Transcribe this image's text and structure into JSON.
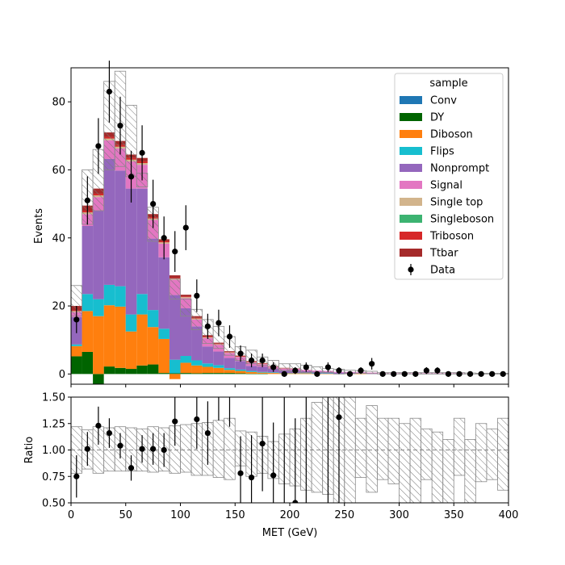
{
  "chart_data": [
    {
      "type": "bar",
      "stacked": true,
      "ylabel": "Events",
      "xlim": [
        0,
        400
      ],
      "ylim": [
        -3,
        90
      ],
      "yticks": [
        0,
        20,
        40,
        60,
        80
      ],
      "xticks": [
        0,
        50,
        100,
        150,
        200,
        250,
        300,
        350,
        400
      ],
      "bin_edges": [
        0,
        10,
        20,
        30,
        40,
        50,
        60,
        70,
        80,
        90,
        100,
        110,
        120,
        130,
        140,
        150,
        160,
        170,
        180,
        190,
        200,
        210,
        220,
        230,
        240,
        250,
        260,
        270,
        280,
        290,
        300,
        310,
        320,
        330,
        340,
        350,
        360,
        370,
        380,
        390,
        400
      ],
      "legend_title": "sample",
      "legend_position": "top-right",
      "series": [
        {
          "name": "Conv",
          "color": "#1f77b4",
          "values": [
            0,
            0,
            0,
            0,
            0,
            0,
            0,
            0,
            0,
            0,
            0,
            0,
            0,
            0,
            0,
            0,
            0,
            0,
            0,
            0,
            0,
            0,
            0,
            0,
            0,
            0,
            0,
            0,
            0,
            0,
            0,
            0,
            0,
            0,
            0,
            0,
            0,
            0,
            0,
            0
          ]
        },
        {
          "name": "DY",
          "color": "#006400",
          "values": [
            5.2,
            6.5,
            -3,
            2.2,
            1.8,
            1.5,
            2.5,
            2.8,
            0.3,
            0.2,
            0.3,
            0.2,
            0.3,
            0.3,
            0.3,
            0.2,
            0.1,
            0.1,
            0,
            0,
            0,
            0,
            0,
            0,
            0,
            0,
            0,
            0,
            0,
            0,
            0,
            0,
            0,
            0,
            0,
            0,
            0,
            0,
            0,
            0
          ]
        },
        {
          "name": "Diboson",
          "color": "#ff7f0e",
          "values": [
            3,
            12,
            17,
            18,
            18,
            11,
            15,
            11,
            10,
            -1.5,
            3,
            2.3,
            1.8,
            1.5,
            0.9,
            0.7,
            0.5,
            0.3,
            0.3,
            0.2,
            0.2,
            0.2,
            0.1,
            0.1,
            0.1,
            0.1,
            0.1,
            0,
            0,
            0,
            0,
            0,
            0,
            0,
            0,
            0,
            0,
            0,
            0,
            0
          ]
        },
        {
          "name": "Flips",
          "color": "#17becf",
          "values": [
            0.5,
            5,
            5,
            6,
            6,
            5,
            6,
            5,
            3,
            4,
            2,
            1.5,
            1,
            0.8,
            0.5,
            0.4,
            0.3,
            0.2,
            0.2,
            0.1,
            0.1,
            0.1,
            0.1,
            0.1,
            0,
            0,
            0,
            0,
            0,
            0,
            0,
            0,
            0,
            0,
            0,
            0,
            0,
            0,
            0,
            0,
            0
          ]
        },
        {
          "name": "Nonprompt",
          "color": "#9467bd",
          "values": [
            8,
            20,
            26,
            37,
            34,
            37,
            31,
            21,
            21,
            19,
            14,
            10,
            5,
            4,
            3,
            2.5,
            1.5,
            1.5,
            1,
            0.8,
            0.8,
            0.5,
            0.5,
            0.4,
            0.3,
            0.3,
            0.2,
            0.2,
            0.1,
            0.1,
            0.1,
            0.1,
            0.1,
            0.1,
            0.1,
            0.1,
            0,
            0,
            0,
            0
          ]
        },
        {
          "name": "Signal",
          "color": "#e377c2",
          "values": [
            1.5,
            3.5,
            4,
            5.5,
            6.5,
            8,
            7,
            5.5,
            4,
            4.5,
            3,
            2,
            2.5,
            2,
            1.5,
            1.2,
            1,
            0.8,
            0.6,
            0.5,
            0.4,
            0.4,
            0.3,
            0.3,
            0.2,
            0.2,
            0.2,
            0.2,
            0.1,
            0.1,
            0.1,
            0.1,
            0.1,
            0.1,
            0.1,
            0.1,
            0,
            0,
            0,
            0
          ]
        },
        {
          "name": "Single top",
          "color": "#d2b48c",
          "values": [
            0.3,
            0.5,
            0.5,
            0.5,
            0.5,
            0.5,
            0.5,
            0.4,
            0.4,
            0.3,
            0.3,
            0.3,
            0.2,
            0.2,
            0.2,
            0.1,
            0.1,
            0.1,
            0.1,
            0.1,
            0,
            0,
            0,
            0,
            0,
            0,
            0,
            0,
            0,
            0,
            0,
            0,
            0,
            0,
            0,
            0,
            0,
            0,
            0,
            0
          ]
        },
        {
          "name": "Singleboson",
          "color": "#3cb371",
          "values": [
            0,
            0,
            0,
            0,
            0,
            0,
            0,
            0,
            0,
            0,
            0,
            0,
            0,
            0,
            0,
            0,
            0,
            0,
            0,
            0,
            0,
            0,
            0,
            0,
            0,
            0,
            0,
            0,
            0,
            0,
            0,
            0,
            0,
            0,
            0,
            0,
            0,
            0,
            0,
            0
          ]
        },
        {
          "name": "Triboson",
          "color": "#d62728",
          "values": [
            0.2,
            0.5,
            0.5,
            0.5,
            0.5,
            0.5,
            0.5,
            0.4,
            0.3,
            0.3,
            0.2,
            0.2,
            0.2,
            0.1,
            0.1,
            0.1,
            0.1,
            0.1,
            0,
            0,
            0,
            0,
            0,
            0,
            0,
            0,
            0,
            0,
            0,
            0,
            0,
            0,
            0,
            0,
            0,
            0,
            0,
            0,
            0,
            0
          ]
        },
        {
          "name": "Ttbar",
          "color": "#a52a2a",
          "values": [
            1.3,
            1.5,
            1.5,
            1.3,
            1.2,
            1,
            1,
            0.9,
            0.6,
            0.7,
            0.5,
            0.5,
            0.4,
            0.3,
            0.2,
            0.2,
            0.2,
            0.1,
            0.1,
            0.1,
            0.1,
            0,
            0,
            0,
            0,
            0,
            0,
            0,
            0,
            0,
            0,
            0,
            0,
            0,
            0,
            0,
            0,
            0,
            0,
            0,
            0
          ]
        }
      ],
      "uncertainty": {
        "up": [
          26,
          60,
          66,
          86,
          89,
          79,
          59,
          49,
          28,
          28,
          22,
          19,
          16,
          14,
          11,
          8,
          7,
          5,
          4,
          3,
          3,
          2.6,
          2.1,
          1.6,
          1.4,
          1.1,
          1,
          0.8,
          0.4,
          0.4,
          0.4,
          0.4,
          0.4,
          0.4,
          0.4,
          0.4,
          0.3,
          0.2,
          0.2,
          0.2
        ],
        "down": [
          17,
          44,
          48,
          60,
          61,
          58,
          55,
          39,
          34,
          22,
          17,
          13,
          9,
          7.5,
          5.5,
          4,
          3,
          2.5,
          1.5,
          1,
          0.7,
          0.4,
          0.5,
          0.4,
          0,
          0.1,
          0.2,
          0.1,
          0,
          0,
          0,
          0,
          0,
          0,
          0,
          0,
          0,
          0,
          0,
          0
        ]
      },
      "data_series": {
        "name": "Data",
        "x": [
          5,
          15,
          25,
          35,
          45,
          55,
          65,
          75,
          85,
          95,
          105,
          115,
          125,
          135,
          145,
          155,
          165,
          175,
          185,
          195,
          205,
          215,
          225,
          235,
          245,
          255,
          265,
          275,
          285,
          295,
          305,
          315,
          325,
          335,
          345,
          355,
          365,
          375,
          385,
          395
        ],
        "y": [
          16,
          51,
          67,
          83,
          73,
          58,
          65,
          50,
          40,
          36,
          43,
          23,
          14,
          15,
          11,
          6,
          4,
          4,
          2,
          0,
          1,
          2,
          0,
          2,
          1,
          0,
          1,
          3,
          0,
          0,
          0,
          0,
          1,
          1,
          0,
          0,
          0,
          0,
          0,
          0
        ],
        "yerr": [
          4,
          7.1,
          8.2,
          9.1,
          8.5,
          7.6,
          8.1,
          7.1,
          6.3,
          6,
          6.6,
          4.8,
          3.7,
          3.9,
          3.3,
          2.4,
          2,
          2,
          1.4,
          0,
          1,
          1.4,
          0,
          1.4,
          1,
          0,
          1,
          1.7,
          0,
          0,
          0,
          0,
          1,
          1,
          0,
          0,
          0,
          0,
          0,
          0
        ]
      }
    },
    {
      "type": "scatter",
      "xlabel": "MET (GeV)",
      "ylabel": "Ratio",
      "xlim": [
        0,
        400
      ],
      "ylim": [
        0.5,
        1.5
      ],
      "yticks": [
        "0.50",
        "0.75",
        "1.00",
        "1.25",
        "1.50"
      ],
      "xticks": [
        "0",
        "50",
        "100",
        "150",
        "200",
        "250",
        "300",
        "350",
        "400"
      ],
      "reference_line": 1.0,
      "band_up": [
        1.22,
        1.19,
        1.22,
        1.21,
        1.22,
        1.21,
        1.2,
        1.22,
        1.21,
        1.23,
        1.24,
        1.25,
        1.26,
        1.28,
        1.3,
        1.18,
        1.17,
        1.13,
        1.08,
        1.15,
        1.2,
        1.3,
        1.45,
        1.5,
        1.5,
        1.5,
        1.3,
        1.42,
        1.3,
        1.3,
        1.25,
        1.3,
        1.2,
        1.17,
        1.1,
        1.3,
        1.1,
        1.25,
        1.2,
        1.3
      ],
      "band_down": [
        0.78,
        0.82,
        0.78,
        0.8,
        0.8,
        0.8,
        0.8,
        0.79,
        0.8,
        0.78,
        0.79,
        0.76,
        0.76,
        0.74,
        0.72,
        0.85,
        0.75,
        0.78,
        0.73,
        0.68,
        0.66,
        0.62,
        0.6,
        0.58,
        0.5,
        0.5,
        0.74,
        0.6,
        0.72,
        0.68,
        0.5,
        0.5,
        0.72,
        0.5,
        0.5,
        0.76,
        0.5,
        0.7,
        0.72,
        0.62
      ],
      "points": {
        "x": [
          5,
          15,
          25,
          35,
          45,
          55,
          65,
          75,
          85,
          95,
          115,
          125,
          155,
          165,
          175,
          185,
          205,
          245
        ],
        "y": [
          0.75,
          1.01,
          1.23,
          1.16,
          1.04,
          0.83,
          1.01,
          1.01,
          1.0,
          1.27,
          1.29,
          1.16,
          0.78,
          0.74,
          1.06,
          0.76,
          0.5,
          1.31
        ],
        "yerr": [
          0.2,
          0.16,
          0.18,
          0.14,
          0.12,
          0.12,
          0.13,
          0.15,
          0.16,
          0.23,
          0.28,
          0.3,
          0.35,
          0.4,
          0.45,
          0.5,
          0.8,
          0.9
        ]
      },
      "extra_error_bars": {
        "x": [
          135,
          145,
          195,
          215,
          235
        ],
        "y_low": [
          1.28,
          1.22,
          0.5,
          0.5,
          0.5
        ],
        "y_high": [
          1.5,
          1.5,
          1.5,
          1.5,
          1.5
        ]
      }
    }
  ]
}
